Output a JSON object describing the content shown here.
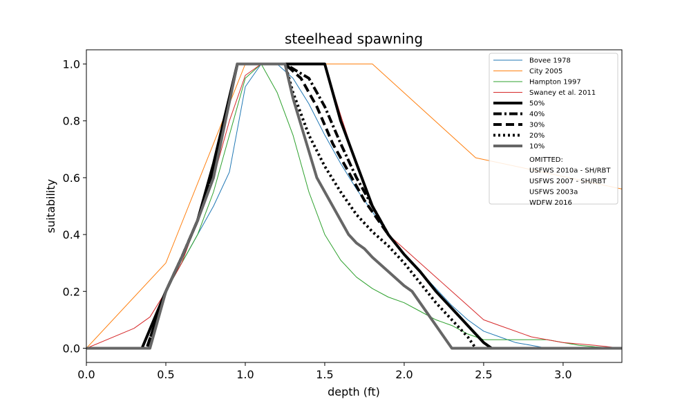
{
  "chart_data": {
    "type": "line",
    "title": "steelhead spawning",
    "xlabel": "depth (ft)",
    "ylabel": "suitability",
    "xlim": [
      0.0,
      3.37
    ],
    "ylim": [
      -0.05,
      1.05
    ],
    "xticks": [
      "0.0",
      "0.5",
      "1.0",
      "1.5",
      "2.0",
      "2.5",
      "3.0"
    ],
    "yticks": [
      "0.0",
      "0.2",
      "0.4",
      "0.6",
      "0.8",
      "1.0"
    ],
    "grid": false,
    "legend_position": "top-right",
    "series": [
      {
        "name": "Bovee 1978",
        "color": "#1f77b4",
        "width": 1,
        "dash": "",
        "x": [
          0.0,
          0.4,
          0.5,
          0.6,
          0.7,
          0.8,
          0.9,
          1.0,
          1.1,
          1.2,
          1.3,
          1.4,
          1.5,
          1.6,
          1.7,
          1.8,
          1.9,
          2.0,
          2.1,
          2.2,
          2.3,
          2.4,
          2.5,
          2.6,
          2.7,
          2.8,
          2.9,
          3.0,
          3.1,
          3.2,
          3.37
        ],
        "y": [
          0.0,
          0.0,
          0.2,
          0.3,
          0.4,
          0.5,
          0.62,
          0.92,
          1.0,
          1.0,
          0.95,
          0.86,
          0.75,
          0.65,
          0.56,
          0.48,
          0.4,
          0.33,
          0.27,
          0.21,
          0.15,
          0.1,
          0.06,
          0.04,
          0.02,
          0.01,
          0.0,
          0.0,
          0.0,
          0.0,
          0.0
        ]
      },
      {
        "name": "City 2005",
        "color": "#ff7f0e",
        "width": 1,
        "dash": "",
        "x": [
          0.0,
          0.5,
          1.0,
          1.8,
          2.45,
          3.37
        ],
        "y": [
          0.0,
          0.3,
          1.0,
          1.0,
          0.67,
          0.56
        ]
      },
      {
        "name": "Hampton 1997",
        "color": "#2ca02c",
        "width": 1,
        "dash": "",
        "x": [
          0.0,
          0.4,
          0.5,
          0.6,
          0.7,
          0.8,
          0.9,
          1.0,
          1.1,
          1.2,
          1.3,
          1.4,
          1.5,
          1.6,
          1.7,
          1.8,
          1.9,
          2.0,
          2.1,
          2.2,
          2.3,
          2.4,
          2.5,
          2.6,
          2.7,
          2.8,
          2.9,
          3.0,
          3.1,
          3.2,
          3.37
        ],
        "y": [
          0.0,
          0.0,
          0.2,
          0.3,
          0.4,
          0.55,
          0.75,
          0.95,
          1.0,
          0.9,
          0.75,
          0.55,
          0.4,
          0.31,
          0.25,
          0.21,
          0.18,
          0.16,
          0.13,
          0.1,
          0.08,
          0.05,
          0.03,
          0.03,
          0.03,
          0.03,
          0.03,
          0.02,
          0.01,
          0.005,
          0.0
        ]
      },
      {
        "name": "Swaney et al. 2011",
        "color": "#d62728",
        "width": 1,
        "dash": "",
        "x": [
          0.0,
          0.3,
          0.4,
          0.5,
          0.6,
          0.7,
          0.8,
          0.9,
          1.0,
          1.1,
          1.2,
          1.3,
          1.4,
          1.5,
          1.6,
          1.7,
          1.8,
          1.9,
          2.0,
          2.1,
          2.2,
          2.3,
          2.4,
          2.5,
          2.6,
          2.8,
          3.0,
          3.2,
          3.37
        ],
        "y": [
          0.0,
          0.07,
          0.11,
          0.2,
          0.3,
          0.45,
          0.6,
          0.8,
          0.96,
          1.0,
          1.0,
          1.0,
          1.0,
          1.0,
          0.82,
          0.65,
          0.5,
          0.4,
          0.35,
          0.3,
          0.25,
          0.2,
          0.15,
          0.1,
          0.08,
          0.04,
          0.02,
          0.01,
          0.0
        ]
      },
      {
        "name": "50%",
        "color": "#000000",
        "width": 4,
        "dash": "",
        "x": [
          0.0,
          0.35,
          0.5,
          0.6,
          0.7,
          0.8,
          0.95,
          1.25,
          1.5,
          1.6,
          1.7,
          1.8,
          1.9,
          2.0,
          2.1,
          2.2,
          2.3,
          2.4,
          2.5,
          2.55,
          3.37
        ],
        "y": [
          0.0,
          0.0,
          0.2,
          0.32,
          0.45,
          0.65,
          1.0,
          1.0,
          1.0,
          0.8,
          0.65,
          0.5,
          0.4,
          0.33,
          0.27,
          0.2,
          0.14,
          0.08,
          0.02,
          0.0,
          0.0
        ]
      },
      {
        "name": "40%",
        "color": "#000000",
        "width": 4,
        "dash": "12,4,3,4",
        "x": [
          0.0,
          0.38,
          0.5,
          0.6,
          0.7,
          0.8,
          0.95,
          1.25,
          1.4,
          1.5,
          1.6,
          1.7,
          1.8,
          1.9
        ],
        "y": [
          0.0,
          0.0,
          0.2,
          0.32,
          0.45,
          0.62,
          1.0,
          1.0,
          0.95,
          0.85,
          0.72,
          0.6,
          0.5,
          0.4
        ]
      },
      {
        "name": "30%",
        "color": "#000000",
        "width": 4,
        "dash": "12,6",
        "x": [
          0.0,
          0.38,
          0.5,
          0.6,
          0.7,
          0.8,
          0.95,
          1.25,
          1.35,
          1.45,
          1.55,
          1.65,
          1.75,
          1.85,
          1.9
        ],
        "y": [
          0.0,
          0.0,
          0.2,
          0.32,
          0.45,
          0.62,
          1.0,
          1.0,
          0.95,
          0.85,
          0.72,
          0.62,
          0.52,
          0.44,
          0.4
        ]
      },
      {
        "name": "20%",
        "color": "#000000",
        "width": 4,
        "dash": "3,4",
        "x": [
          0.0,
          0.38,
          0.5,
          0.6,
          0.7,
          0.8,
          0.95,
          1.25,
          1.3,
          1.4,
          1.5,
          1.6,
          1.7,
          1.8,
          1.9,
          2.0,
          2.1,
          2.2,
          2.3,
          2.4,
          2.45
        ],
        "y": [
          0.0,
          0.0,
          0.2,
          0.32,
          0.45,
          0.62,
          1.0,
          1.0,
          0.9,
          0.75,
          0.64,
          0.55,
          0.47,
          0.41,
          0.36,
          0.3,
          0.23,
          0.16,
          0.1,
          0.04,
          0.0
        ]
      },
      {
        "name": "10%",
        "color": "#666666",
        "width": 4,
        "dash": "",
        "x": [
          0.0,
          0.4,
          0.5,
          0.6,
          0.7,
          0.8,
          0.95,
          1.25,
          1.3,
          1.45,
          1.55,
          1.65,
          1.7,
          1.75,
          1.8,
          1.9,
          2.0,
          2.05,
          2.3,
          3.37
        ],
        "y": [
          0.0,
          0.0,
          0.2,
          0.32,
          0.45,
          0.6,
          1.0,
          1.0,
          0.88,
          0.6,
          0.5,
          0.4,
          0.37,
          0.35,
          0.32,
          0.27,
          0.22,
          0.2,
          0.0,
          0.0
        ]
      }
    ],
    "legend_notes": [
      "OMITTED:",
      "USFWS 2010a - SH/RBT",
      "USFWS 2007 - SH/RBT",
      "USFWS 2003a",
      "WDFW 2016"
    ]
  }
}
